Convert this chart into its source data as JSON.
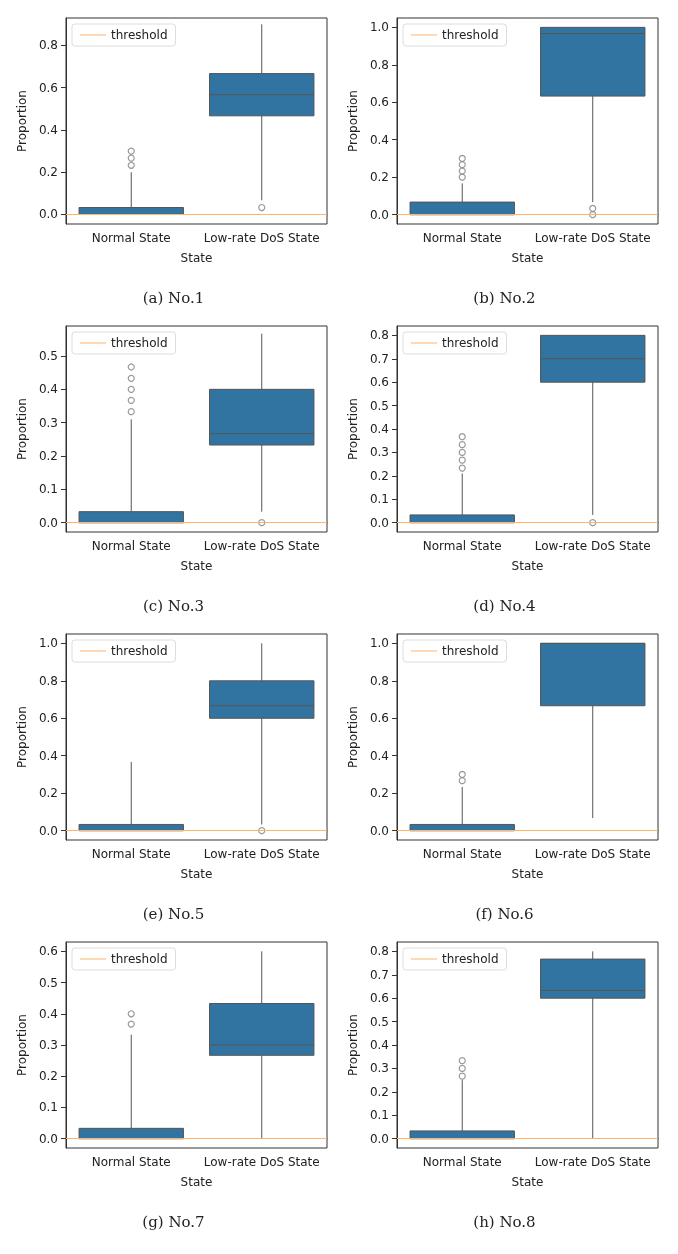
{
  "chart_data": [
    {
      "type": "box",
      "title": "(a) No.1",
      "xlabel": "State",
      "ylabel": "Proportion",
      "categories": [
        "Normal State",
        "Low-rate DoS State"
      ],
      "ylim": [
        -0.045,
        0.93
      ],
      "yticks": [
        {
          "value": 0,
          "label": "0.0"
        },
        {
          "value": 0.2,
          "label": "0.2"
        },
        {
          "value": 0.4,
          "label": "0.4"
        },
        {
          "value": 0.6,
          "label": "0.6"
        },
        {
          "value": 0.8,
          "label": "0.8"
        }
      ],
      "legend": "top left",
      "ref_lines": [
        {
          "axis": "y",
          "value": 0,
          "label": "threshold",
          "color": "#ffb366"
        }
      ],
      "series": [
        {
          "color": "#3274a1",
          "boxes": [
            {
              "low": 0,
              "q1": 0,
              "median": 0,
              "q3": 0.033,
              "high": 0.2,
              "outliers": [
                0.233,
                0.267,
                0.3
              ]
            },
            {
              "low": 0.067,
              "q1": 0.467,
              "median": 0.567,
              "q3": 0.667,
              "high": 0.9,
              "outliers": [
                0.033
              ]
            }
          ]
        }
      ]
    },
    {
      "type": "box",
      "title": "(b) No.2",
      "xlabel": "State",
      "ylabel": "Proportion",
      "categories": [
        "Normal State",
        "Low-rate DoS State"
      ],
      "ylim": [
        -0.05,
        1.05
      ],
      "yticks": [
        {
          "value": 0,
          "label": "0.0"
        },
        {
          "value": 0.2,
          "label": "0.2"
        },
        {
          "value": 0.4,
          "label": "0.4"
        },
        {
          "value": 0.6,
          "label": "0.6"
        },
        {
          "value": 0.8,
          "label": "0.8"
        },
        {
          "value": 1,
          "label": "1.0"
        }
      ],
      "legend": "top left",
      "ref_lines": [
        {
          "axis": "y",
          "value": 0,
          "label": "threshold",
          "color": "#ffb366"
        }
      ],
      "series": [
        {
          "color": "#3274a1",
          "boxes": [
            {
              "low": 0,
              "q1": 0,
              "median": 0,
              "q3": 0.067,
              "high": 0.167,
              "outliers": [
                0.2,
                0.233,
                0.267,
                0.3
              ]
            },
            {
              "low": 0.067,
              "q1": 0.633,
              "median": 0.967,
              "q3": 1.0,
              "high": 1.0,
              "outliers": [
                0,
                0.033
              ]
            }
          ]
        }
      ]
    },
    {
      "type": "box",
      "title": "(c) No.3",
      "xlabel": "State",
      "ylabel": "Proportion",
      "categories": [
        "Normal State",
        "Low-rate DoS State"
      ],
      "ylim": [
        -0.028,
        0.59
      ],
      "yticks": [
        {
          "value": 0,
          "label": "0.0"
        },
        {
          "value": 0.1,
          "label": "0.1"
        },
        {
          "value": 0.2,
          "label": "0.2"
        },
        {
          "value": 0.3,
          "label": "0.3"
        },
        {
          "value": 0.4,
          "label": "0.4"
        },
        {
          "value": 0.5,
          "label": "0.5"
        }
      ],
      "legend": "top left",
      "ref_lines": [
        {
          "axis": "y",
          "value": 0,
          "label": "threshold",
          "color": "#ffb366"
        }
      ],
      "series": [
        {
          "color": "#3274a1",
          "boxes": [
            {
              "low": 0,
              "q1": 0,
              "median": 0,
              "q3": 0.033,
              "high": 0.31,
              "outliers": [
                0.333,
                0.367,
                0.4,
                0.433,
                0.467
              ]
            },
            {
              "low": 0.033,
              "q1": 0.233,
              "median": 0.267,
              "q3": 0.4,
              "high": 0.567,
              "outliers": [
                0
              ]
            }
          ]
        }
      ]
    },
    {
      "type": "box",
      "title": "(d) No.4",
      "xlabel": "State",
      "ylabel": "Proportion",
      "categories": [
        "Normal State",
        "Low-rate DoS State"
      ],
      "ylim": [
        -0.04,
        0.84
      ],
      "yticks": [
        {
          "value": 0,
          "label": "0.0"
        },
        {
          "value": 0.1,
          "label": "0.1"
        },
        {
          "value": 0.2,
          "label": "0.2"
        },
        {
          "value": 0.3,
          "label": "0.3"
        },
        {
          "value": 0.4,
          "label": "0.4"
        },
        {
          "value": 0.5,
          "label": "0.5"
        },
        {
          "value": 0.6,
          "label": "0.6"
        },
        {
          "value": 0.7,
          "label": "0.7"
        },
        {
          "value": 0.8,
          "label": "0.8"
        }
      ],
      "legend": "top left",
      "ref_lines": [
        {
          "axis": "y",
          "value": 0,
          "label": "threshold",
          "color": "#ffb366"
        }
      ],
      "series": [
        {
          "color": "#3274a1",
          "boxes": [
            {
              "low": 0,
              "q1": 0,
              "median": 0,
              "q3": 0.033,
              "high": 0.21,
              "outliers": [
                0.233,
                0.267,
                0.3,
                0.333,
                0.367
              ]
            },
            {
              "low": 0.033,
              "q1": 0.6,
              "median": 0.7,
              "q3": 0.8,
              "high": 0.8,
              "outliers": [
                0
              ]
            }
          ]
        }
      ]
    },
    {
      "type": "box",
      "title": "(e) No.5",
      "xlabel": "State",
      "ylabel": "Proportion",
      "categories": [
        "Normal State",
        "Low-rate DoS State"
      ],
      "ylim": [
        -0.05,
        1.05
      ],
      "yticks": [
        {
          "value": 0,
          "label": "0.0"
        },
        {
          "value": 0.2,
          "label": "0.2"
        },
        {
          "value": 0.4,
          "label": "0.4"
        },
        {
          "value": 0.6,
          "label": "0.6"
        },
        {
          "value": 0.8,
          "label": "0.8"
        },
        {
          "value": 1,
          "label": "1.0"
        }
      ],
      "legend": "top left",
      "ref_lines": [
        {
          "axis": "y",
          "value": 0,
          "label": "threshold",
          "color": "#ffb366"
        }
      ],
      "series": [
        {
          "color": "#3274a1",
          "boxes": [
            {
              "low": 0,
              "q1": 0,
              "median": 0,
              "q3": 0.033,
              "high": 0.367
            },
            {
              "low": 0.033,
              "q1": 0.6,
              "median": 0.667,
              "q3": 0.8,
              "high": 1.0,
              "outliers": [
                0
              ]
            }
          ]
        }
      ]
    },
    {
      "type": "box",
      "title": "(f) No.6",
      "xlabel": "State",
      "ylabel": "Proportion",
      "categories": [
        "Normal State",
        "Low-rate DoS State"
      ],
      "ylim": [
        -0.05,
        1.05
      ],
      "yticks": [
        {
          "value": 0,
          "label": "0.0"
        },
        {
          "value": 0.2,
          "label": "0.2"
        },
        {
          "value": 0.4,
          "label": "0.4"
        },
        {
          "value": 0.6,
          "label": "0.6"
        },
        {
          "value": 0.8,
          "label": "0.8"
        },
        {
          "value": 1,
          "label": "1.0"
        }
      ],
      "legend": "top left",
      "ref_lines": [
        {
          "axis": "y",
          "value": 0,
          "label": "threshold",
          "color": "#ffb366"
        }
      ],
      "series": [
        {
          "color": "#3274a1",
          "boxes": [
            {
              "low": 0,
              "q1": 0,
              "median": 0,
              "q3": 0.033,
              "high": 0.233,
              "outliers": [
                0.267,
                0.3
              ]
            },
            {
              "low": 0.067,
              "q1": 0.667,
              "median": 1.0,
              "q3": 1.0,
              "high": 1.0
            }
          ]
        }
      ]
    },
    {
      "type": "box",
      "title": "(g) No.7",
      "xlabel": "State",
      "ylabel": "Proportion",
      "categories": [
        "Normal State",
        "Low-rate DoS State"
      ],
      "ylim": [
        -0.03,
        0.63
      ],
      "yticks": [
        {
          "value": 0,
          "label": "0.0"
        },
        {
          "value": 0.1,
          "label": "0.1"
        },
        {
          "value": 0.2,
          "label": "0.2"
        },
        {
          "value": 0.3,
          "label": "0.3"
        },
        {
          "value": 0.4,
          "label": "0.4"
        },
        {
          "value": 0.5,
          "label": "0.5"
        },
        {
          "value": 0.6,
          "label": "0.6"
        }
      ],
      "legend": "top left",
      "ref_lines": [
        {
          "axis": "y",
          "value": 0,
          "label": "threshold",
          "color": "#ffb366"
        }
      ],
      "series": [
        {
          "color": "#3274a1",
          "boxes": [
            {
              "low": 0,
              "q1": 0,
              "median": 0,
              "q3": 0.033,
              "high": 0.333,
              "outliers": [
                0.367,
                0.4
              ]
            },
            {
              "low": 0,
              "q1": 0.267,
              "median": 0.3,
              "q3": 0.433,
              "high": 0.6
            }
          ]
        }
      ]
    },
    {
      "type": "box",
      "title": "(h) No.8",
      "xlabel": "State",
      "ylabel": "Proportion",
      "categories": [
        "Normal State",
        "Low-rate DoS State"
      ],
      "ylim": [
        -0.04,
        0.84
      ],
      "yticks": [
        {
          "value": 0,
          "label": "0.0"
        },
        {
          "value": 0.1,
          "label": "0.1"
        },
        {
          "value": 0.2,
          "label": "0.2"
        },
        {
          "value": 0.3,
          "label": "0.3"
        },
        {
          "value": 0.4,
          "label": "0.4"
        },
        {
          "value": 0.5,
          "label": "0.5"
        },
        {
          "value": 0.6,
          "label": "0.6"
        },
        {
          "value": 0.7,
          "label": "0.7"
        },
        {
          "value": 0.8,
          "label": "0.8"
        }
      ],
      "legend": "top left",
      "ref_lines": [
        {
          "axis": "y",
          "value": 0,
          "label": "threshold",
          "color": "#ffb366"
        }
      ],
      "series": [
        {
          "color": "#3274a1",
          "boxes": [
            {
              "low": 0,
              "q1": 0,
              "median": 0,
              "q3": 0.033,
              "high": 0.25,
              "outliers": [
                0.267,
                0.3,
                0.333
              ]
            },
            {
              "low": 0,
              "q1": 0.6,
              "median": 0.633,
              "q3": 0.767,
              "high": 0.8
            }
          ]
        }
      ]
    }
  ]
}
